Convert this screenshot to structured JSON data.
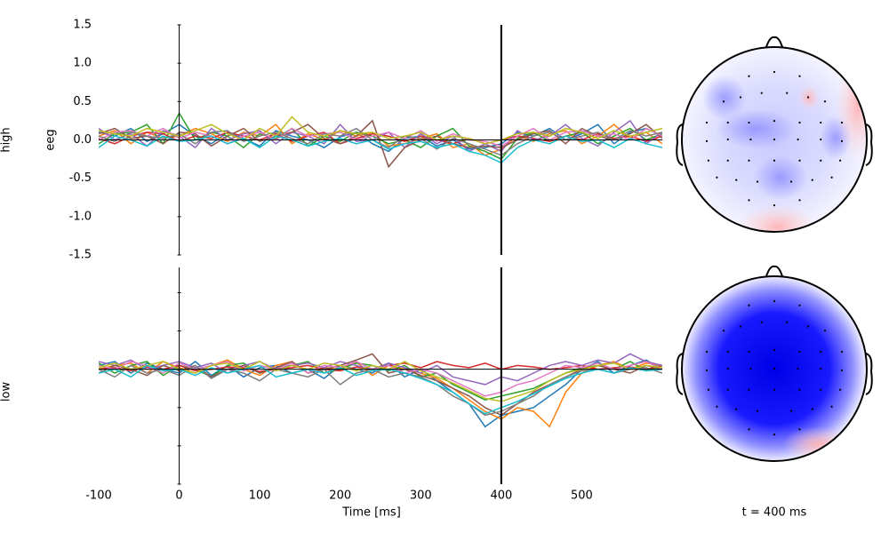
{
  "chart_data": [
    {
      "type": "line",
      "row_label": "high",
      "ylabel": "eeg",
      "xlim": [
        -100,
        600
      ],
      "ylim": [
        -1.5,
        1.5
      ],
      "yticks": [
        1.5,
        {
          "value": 1.0,
          "label": "1.0"
        },
        0.5,
        {
          "value": 0.0,
          "label": "0.0"
        },
        -0.5,
        {
          "value": -1.0,
          "label": "-1.0"
        },
        -1.5
      ],
      "tick_labels": true,
      "vline": 400,
      "x": [
        -100,
        -80,
        -60,
        -40,
        -20,
        0,
        20,
        40,
        60,
        80,
        100,
        120,
        140,
        160,
        180,
        200,
        220,
        240,
        260,
        280,
        300,
        320,
        340,
        360,
        380,
        400,
        420,
        440,
        460,
        480,
        500,
        520,
        540,
        560,
        580,
        600
      ],
      "series": [
        {
          "color": "#1f77b4",
          "values": [
            0.1,
            0.05,
            0.15,
            -0.02,
            0.08,
            0.2,
            0.05,
            -0.05,
            0.1,
            0.02,
            -0.08,
            0.12,
            0.05,
            0.0,
            -0.1,
            0.04,
            0.1,
            -0.05,
            -0.15,
            0.02,
            0.05,
            -0.08,
            0.0,
            -0.12,
            -0.1,
            -0.05,
            0.1,
            0.05,
            0.15,
            0.0,
            0.08,
            0.2,
            -0.05,
            0.1,
            0.15,
            0.05
          ]
        },
        {
          "color": "#ff7f0e",
          "values": [
            0.05,
            0.12,
            -0.05,
            0.1,
            0.02,
            0.05,
            0.15,
            0.08,
            -0.02,
            0.1,
            0.05,
            0.2,
            -0.05,
            0.08,
            0.0,
            0.12,
            0.05,
            0.1,
            -0.08,
            -0.05,
            0.02,
            0.08,
            -0.1,
            -0.05,
            -0.2,
            -0.12,
            0.05,
            -0.02,
            0.08,
            0.12,
            -0.05,
            0.05,
            0.2,
            0.02,
            0.1,
            -0.05
          ]
        },
        {
          "color": "#2ca02c",
          "values": [
            -0.05,
            0.08,
            0.1,
            0.2,
            -0.05,
            0.35,
            0.0,
            0.1,
            0.05,
            -0.1,
            0.08,
            0.02,
            0.15,
            -0.08,
            0.05,
            -0.02,
            0.1,
            0.05,
            -0.05,
            0.0,
            -0.1,
            0.05,
            0.15,
            -0.08,
            -0.15,
            -0.25,
            0.02,
            0.1,
            -0.02,
            0.05,
            0.1,
            -0.05,
            0.05,
            0.15,
            0.0,
            0.08
          ]
        },
        {
          "color": "#d62728",
          "values": [
            0.02,
            -0.05,
            0.05,
            0.1,
            0.08,
            -0.02,
            0.05,
            0.02,
            0.1,
            0.05,
            0.0,
            0.08,
            -0.02,
            0.05,
            0.1,
            -0.05,
            0.02,
            0.08,
            0.05,
            -0.02,
            0.05,
            0.0,
            -0.05,
            0.02,
            -0.05,
            0.0,
            0.05,
            0.02,
            -0.02,
            0.05,
            0.0,
            0.08,
            0.02,
            0.05,
            -0.02,
            0.05
          ]
        },
        {
          "color": "#9467bd",
          "values": [
            0.15,
            0.0,
            0.08,
            -0.08,
            0.12,
            0.05,
            -0.1,
            0.15,
            0.0,
            0.08,
            0.12,
            -0.05,
            0.1,
            0.05,
            -0.05,
            0.2,
            -0.02,
            0.0,
            0.1,
            -0.1,
            0.08,
            -0.05,
            0.05,
            -0.15,
            -0.05,
            -0.15,
            0.12,
            0.0,
            0.05,
            0.2,
            0.02,
            -0.08,
            0.1,
            0.25,
            -0.05,
            0.1
          ]
        },
        {
          "color": "#8c564b",
          "values": [
            0.08,
            0.15,
            0.02,
            0.05,
            -0.05,
            0.1,
            0.08,
            -0.08,
            0.05,
            0.15,
            -0.02,
            0.05,
            0.1,
            0.2,
            0.02,
            -0.05,
            0.05,
            0.25,
            -0.35,
            -0.1,
            0.0,
            0.05,
            -0.05,
            -0.1,
            -0.08,
            -0.1,
            0.0,
            0.08,
            0.12,
            -0.05,
            0.15,
            0.05,
            0.0,
            0.08,
            0.2,
            0.02
          ]
        },
        {
          "color": "#e377c2",
          "values": [
            0.0,
            0.1,
            0.12,
            0.05,
            0.15,
            0.02,
            0.1,
            0.05,
            -0.05,
            0.05,
            0.1,
            0.0,
            0.15,
            0.05,
            0.08,
            0.1,
            0.0,
            0.05,
            0.1,
            0.02,
            0.12,
            -0.02,
            0.08,
            0.0,
            -0.02,
            -0.08,
            0.05,
            0.15,
            0.0,
            0.1,
            0.12,
            0.05,
            0.08,
            0.0,
            0.15,
            0.05
          ]
        },
        {
          "color": "#7f7f7f",
          "values": [
            0.05,
            -0.02,
            0.1,
            0.05,
            0.02,
            0.08,
            -0.05,
            0.1,
            0.12,
            -0.02,
            0.05,
            0.1,
            0.02,
            -0.05,
            0.08,
            0.05,
            0.15,
            0.0,
            -0.1,
            0.05,
            0.02,
            -0.12,
            0.02,
            -0.05,
            -0.12,
            -0.2,
            -0.05,
            0.05,
            0.1,
            0.0,
            0.05,
            0.1,
            0.0,
            0.12,
            0.05,
            0.1
          ]
        },
        {
          "color": "#bcbd22",
          "values": [
            0.12,
            0.08,
            0.05,
            0.15,
            0.1,
            0.05,
            0.12,
            0.2,
            0.08,
            0.0,
            0.15,
            0.05,
            0.3,
            0.1,
            0.05,
            0.12,
            0.08,
            0.1,
            0.02,
            0.05,
            0.1,
            0.0,
            0.05,
            0.02,
            -0.05,
            0.0,
            0.08,
            0.1,
            0.05,
            0.15,
            0.1,
            0.02,
            0.12,
            0.05,
            0.1,
            0.15
          ]
        },
        {
          "color": "#17becf",
          "values": [
            -0.1,
            0.05,
            0.0,
            -0.08,
            0.05,
            -0.02,
            0.0,
            0.05,
            -0.05,
            0.02,
            -0.1,
            0.05,
            0.0,
            -0.08,
            -0.02,
            0.02,
            -0.05,
            0.0,
            -0.12,
            -0.05,
            -0.02,
            -0.1,
            -0.05,
            -0.15,
            -0.2,
            -0.3,
            -0.1,
            0.0,
            -0.05,
            0.05,
            -0.02,
            0.0,
            -0.1,
            0.02,
            -0.05,
            -0.1
          ]
        }
      ]
    },
    {
      "type": "line",
      "row_label": "low",
      "xlabel": "Time [ms]",
      "xlim": [
        -100,
        600
      ],
      "ylim": [
        -1.5,
        1.33
      ],
      "xticks": [
        -100,
        0,
        100,
        200,
        300,
        400,
        500
      ],
      "yticks": [
        -1.5,
        -1,
        -0.5,
        0,
        0.5,
        1
      ],
      "tick_labels": false,
      "vline": 400,
      "x": [
        -100,
        -80,
        -60,
        -40,
        -20,
        0,
        20,
        40,
        60,
        80,
        100,
        120,
        140,
        160,
        180,
        200,
        220,
        240,
        260,
        280,
        300,
        320,
        340,
        360,
        380,
        400,
        420,
        440,
        460,
        480,
        500,
        520,
        540,
        560,
        580,
        600
      ],
      "series": [
        {
          "color": "#1f77b4",
          "values": [
            0.05,
            0.1,
            -0.05,
            0.08,
            0.0,
            -0.05,
            0.1,
            -0.08,
            0.05,
            -0.1,
            0.02,
            0.05,
            -0.05,
            0.0,
            -0.12,
            0.05,
            0.0,
            -0.05,
            0.08,
            -0.1,
            0.0,
            -0.15,
            -0.3,
            -0.45,
            -0.75,
            -0.6,
            -0.55,
            -0.5,
            -0.35,
            -0.2,
            0.0,
            0.1,
            -0.05,
            0.05,
            0.12,
            0.0
          ]
        },
        {
          "color": "#ff7f0e",
          "values": [
            0.0,
            0.05,
            0.08,
            -0.05,
            0.1,
            0.02,
            -0.05,
            0.05,
            0.12,
            0.0,
            -0.08,
            0.05,
            0.1,
            -0.05,
            0.02,
            0.0,
            0.1,
            -0.08,
            0.05,
            0.0,
            -0.05,
            -0.12,
            -0.25,
            -0.4,
            -0.55,
            -0.65,
            -0.5,
            -0.55,
            -0.75,
            -0.3,
            -0.05,
            0.05,
            0.1,
            0.0,
            0.08,
            0.05
          ]
        },
        {
          "color": "#2ca02c",
          "values": [
            0.08,
            -0.05,
            0.05,
            0.1,
            -0.08,
            0.05,
            0.0,
            -0.1,
            0.05,
            0.08,
            -0.05,
            0.02,
            0.05,
            0.1,
            -0.05,
            0.0,
            0.08,
            0.05,
            -0.02,
            0.05,
            -0.1,
            -0.05,
            -0.2,
            -0.3,
            -0.4,
            -0.35,
            -0.3,
            -0.25,
            -0.15,
            -0.05,
            0.02,
            0.05,
            0.0,
            0.1,
            -0.02,
            0.05
          ]
        },
        {
          "color": "#d62728",
          "values": [
            0.0,
            0.02,
            -0.02,
            0.03,
            0.0,
            0.05,
            -0.02,
            0.0,
            0.03,
            0.02,
            -0.03,
            0.0,
            0.02,
            0.05,
            0.0,
            -0.02,
            0.03,
            0.0,
            0.05,
            0.08,
            0.02,
            0.1,
            0.05,
            0.02,
            0.08,
            0.0,
            0.05,
            0.03,
            0.0,
            0.02,
            0.05,
            0.0,
            0.02,
            0.03,
            0.0,
            0.05
          ]
        },
        {
          "color": "#9467bd",
          "values": [
            0.1,
            0.05,
            0.12,
            0.0,
            0.05,
            0.1,
            0.02,
            0.08,
            -0.05,
            0.05,
            0.1,
            0.0,
            0.05,
            0.08,
            0.02,
            0.1,
            0.05,
            0.0,
            0.08,
            0.02,
            -0.05,
            0.05,
            -0.1,
            -0.15,
            -0.2,
            -0.1,
            -0.15,
            -0.05,
            0.05,
            0.1,
            0.05,
            0.12,
            0.08,
            0.2,
            0.1,
            0.05
          ]
        },
        {
          "color": "#8c564b",
          "values": [
            -0.05,
            0.05,
            0.0,
            -0.08,
            0.05,
            -0.02,
            0.05,
            -0.1,
            0.0,
            0.05,
            -0.05,
            0.02,
            0.1,
            -0.05,
            0.0,
            0.05,
            0.12,
            0.2,
            -0.05,
            0.0,
            -0.08,
            -0.15,
            -0.25,
            -0.35,
            -0.5,
            -0.6,
            -0.45,
            -0.3,
            -0.2,
            -0.1,
            0.0,
            0.05,
            0.0,
            -0.05,
            0.05,
            0.0
          ]
        },
        {
          "color": "#e377c2",
          "values": [
            0.05,
            0.0,
            0.1,
            0.05,
            -0.05,
            0.08,
            0.0,
            0.05,
            0.1,
            -0.02,
            0.05,
            0.0,
            0.08,
            -0.05,
            0.05,
            0.02,
            0.1,
            0.0,
            0.05,
            -0.05,
            0.0,
            -0.05,
            -0.15,
            -0.25,
            -0.35,
            -0.3,
            -0.2,
            -0.15,
            -0.05,
            0.05,
            0.02,
            0.08,
            0.0,
            0.05,
            0.1,
            0.0
          ]
        },
        {
          "color": "#7f7f7f",
          "values": [
            0.0,
            -0.1,
            0.05,
            -0.05,
            0.0,
            -0.08,
            0.05,
            -0.12,
            0.0,
            -0.05,
            -0.15,
            0.0,
            -0.05,
            -0.1,
            0.0,
            -0.2,
            -0.05,
            0.0,
            -0.1,
            -0.05,
            -0.1,
            -0.2,
            -0.35,
            -0.45,
            -0.6,
            -0.55,
            -0.45,
            -0.35,
            -0.2,
            -0.1,
            -0.02,
            0.0,
            -0.05,
            0.0,
            0.02,
            -0.05
          ]
        },
        {
          "color": "#bcbd22",
          "values": [
            0.02,
            0.08,
            0.0,
            0.05,
            0.1,
            0.0,
            -0.05,
            0.05,
            0.08,
            0.0,
            0.1,
            -0.02,
            0.05,
            0.0,
            0.08,
            0.05,
            -0.02,
            0.05,
            0.0,
            0.1,
            -0.02,
            -0.1,
            -0.18,
            -0.28,
            -0.38,
            -0.42,
            -0.35,
            -0.28,
            -0.15,
            -0.05,
            0.0,
            0.05,
            0.08,
            0.0,
            0.05,
            0.02
          ]
        },
        {
          "color": "#17becf",
          "values": [
            -0.05,
            0.0,
            -0.1,
            0.05,
            -0.02,
            0.0,
            -0.08,
            0.02,
            -0.05,
            0.0,
            0.05,
            -0.1,
            -0.05,
            0.0,
            -0.05,
            0.02,
            -0.08,
            -0.02,
            0.0,
            -0.05,
            -0.12,
            -0.2,
            -0.3,
            -0.45,
            -0.58,
            -0.5,
            -0.42,
            -0.32,
            -0.22,
            -0.12,
            -0.05,
            0.0,
            -0.05,
            0.02,
            -0.02,
            0.0
          ]
        }
      ]
    }
  ],
  "topomap": {
    "label": "t = 400 ms"
  }
}
